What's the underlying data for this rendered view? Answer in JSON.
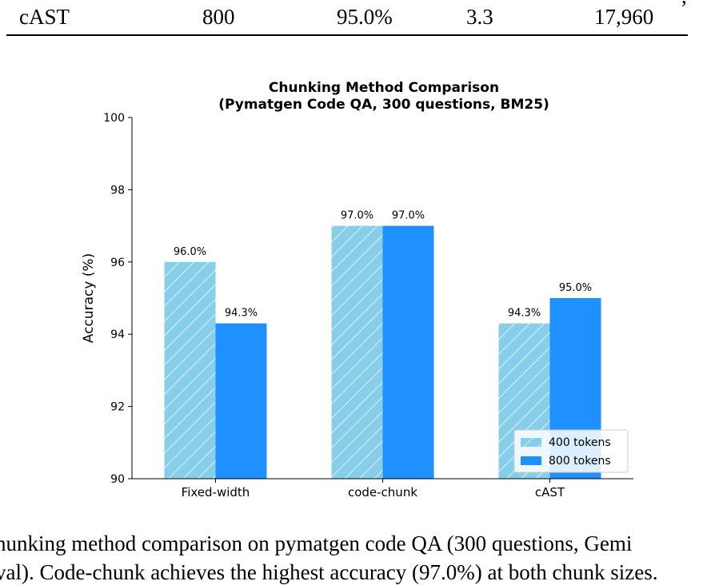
{
  "table": {
    "last_row": [
      "cAST",
      "800",
      "95.0%",
      "3.3",
      "17,960"
    ],
    "fragment_above": ","
  },
  "chart_data": {
    "type": "bar",
    "title": "Chunking Method Comparison\n(Pymatgen Code QA, 300 questions, BM25)",
    "xlabel": "",
    "ylabel": "Accuracy (%)",
    "categories": [
      "Fixed-width",
      "code-chunk",
      "cAST"
    ],
    "series": [
      {
        "name": "400 tokens",
        "values": [
          96.0,
          97.0,
          94.3
        ],
        "labels": [
          "96.0%",
          "97.0%",
          "94.3%"
        ],
        "color": "#87ceeb",
        "hatch": true
      },
      {
        "name": "800 tokens",
        "values": [
          94.3,
          97.0,
          95.0
        ],
        "labels": [
          "94.3%",
          "97.0%",
          "95.0%"
        ],
        "color": "#1e90ff",
        "hatch": false
      }
    ],
    "ylim": [
      90,
      100
    ],
    "yticks": [
      "90",
      "92",
      "94",
      "96",
      "98",
      "100"
    ],
    "legend": "lower-right",
    "grid": false
  },
  "caption": {
    "line1": "hunking method comparison on pymatgen code QA (300 questions, Gemi",
    "line2": "val). Code-chunk achieves the highest accuracy (97.0%) at both chunk sizes."
  }
}
